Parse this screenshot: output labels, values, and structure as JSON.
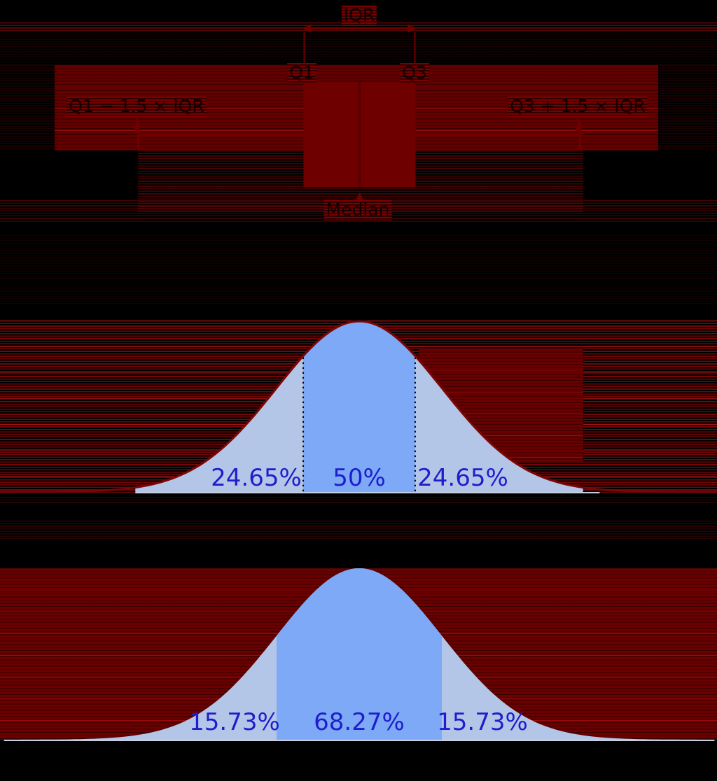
{
  "colors": {
    "background": "#000000",
    "curve_outline": "#7d0505",
    "region_tail": "#b4c6e8",
    "region_center": "#7da9f6",
    "percent_text": "#1e1ecc",
    "boxplot_red": "#6e0000",
    "boxplot_median_red": "#540000",
    "baseline": "#c6cfe2",
    "dotted_line": "#000000",
    "artifact_stripe_red": "#8b0000"
  },
  "chart_data": [
    {
      "type": "area",
      "name": "boxplot",
      "description": "Horizontal box-and-whisker plot aligned above a normal distribution",
      "labels": {
        "iqr": "IQR",
        "q1": "Q1",
        "q3": "Q3",
        "median": "Median",
        "lower_fence": "Q1 − 1.5 × IQR",
        "upper_fence": "Q3 + 1.5 × IQR"
      },
      "values_sigma": {
        "q1": -0.6745,
        "median": 0,
        "q3": 0.6745,
        "lower_whisker": -2.698,
        "upper_whisker": 2.698
      }
    },
    {
      "type": "area",
      "name": "normal-pdf-iqr-regions",
      "x_unit": "sigma",
      "sigma_range": [
        -4.33,
        4.31
      ],
      "outline": true,
      "dotted_lines_sigma": [
        -0.6745,
        0.6745
      ],
      "regions": [
        {
          "from_sigma": -2.698,
          "to_sigma": -0.6745,
          "percent": 24.65,
          "label": "24.65%",
          "fill": "tail"
        },
        {
          "from_sigma": -0.6745,
          "to_sigma": 0.6745,
          "percent": 50,
          "label": "50%",
          "fill": "center"
        },
        {
          "from_sigma": 0.6745,
          "to_sigma": 2.698,
          "percent": 24.65,
          "label": "24.65%",
          "fill": "tail"
        }
      ]
    },
    {
      "type": "area",
      "name": "normal-pdf-stddev-regions",
      "x_unit": "sigma",
      "sigma_range": [
        -4.3,
        4.3
      ],
      "outline": false,
      "dotted_lines_sigma": [],
      "regions": [
        {
          "from_sigma": -4.3,
          "to_sigma": -1,
          "percent": 15.73,
          "label": "15.73%",
          "fill": "tail"
        },
        {
          "from_sigma": -1,
          "to_sigma": 1,
          "percent": 68.27,
          "label": "68.27%",
          "fill": "center"
        },
        {
          "from_sigma": 1,
          "to_sigma": 4.3,
          "percent": 15.73,
          "label": "15.73%",
          "fill": "tail"
        }
      ]
    }
  ]
}
